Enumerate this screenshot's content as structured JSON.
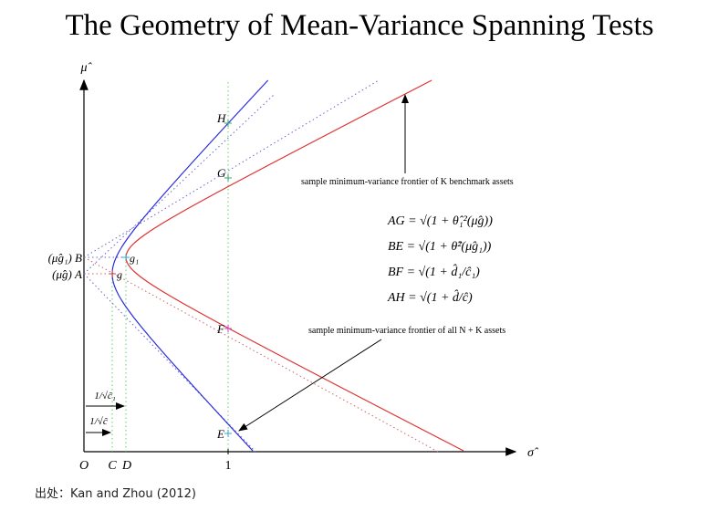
{
  "title": "The Geometry of Mean-Variance Spanning Tests",
  "axes": {
    "y_label": "μ̂",
    "x_label": "σ̂",
    "x_ticks": [
      "O",
      "C",
      "D",
      "1"
    ],
    "y_ticks": [
      "(μ̂g₁) B",
      "(μ̂g) A"
    ]
  },
  "points": [
    "H",
    "G",
    "g₁",
    "g",
    "F",
    "E"
  ],
  "annotations": [
    "sample minimum-variance frontier of K benchmark assets",
    "sample minimum-variance frontier of all N + K assets"
  ],
  "equations": [
    "AG = √(1 + θ̂₁²(μ̂g))",
    "BE = √(1 + θ̂²(μ̂g₁))",
    "BF = √(1 + d̂₁/ĉ₁)",
    "AH = √(1 + d̂/ĉ)"
  ],
  "widths": [
    "1/√ĉ₁",
    "1/√ĉ"
  ],
  "source": "出处：Kan and Zhou (2012)"
}
